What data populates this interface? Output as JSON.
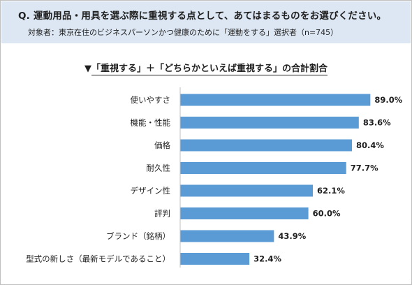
{
  "question": "Q. 運動用品・用具を選ぶ際に重視する点として、あてはまるものをお選びください。",
  "subject": "対象者：東京在住のビジネスパーソンかつ健康のために「運動をする」選択者（n=745）",
  "chart_title_marker": "▼",
  "chart_title": "「重視する」＋「どちらかといえば重視する」の合計割合",
  "colors": {
    "bar": "#5b9bd5",
    "axis": "#bfbfbf",
    "header_bg": "#dde7f3"
  },
  "chart_data": {
    "type": "bar",
    "orientation": "horizontal",
    "categories": [
      "使いやすさ",
      "機能・性能",
      "価格",
      "耐久性",
      "デザイン性",
      "評判",
      "ブランド（銘柄）",
      "型式の新しさ（最新モデルであること）"
    ],
    "values": [
      89.0,
      83.6,
      80.4,
      77.7,
      62.1,
      60.0,
      43.9,
      32.4
    ],
    "value_labels": [
      "89.0%",
      "83.6%",
      "80.4%",
      "77.7%",
      "62.1%",
      "60.0%",
      "43.9%",
      "32.4%"
    ],
    "xlim": [
      0,
      100
    ],
    "grid": false,
    "legend": "none"
  }
}
